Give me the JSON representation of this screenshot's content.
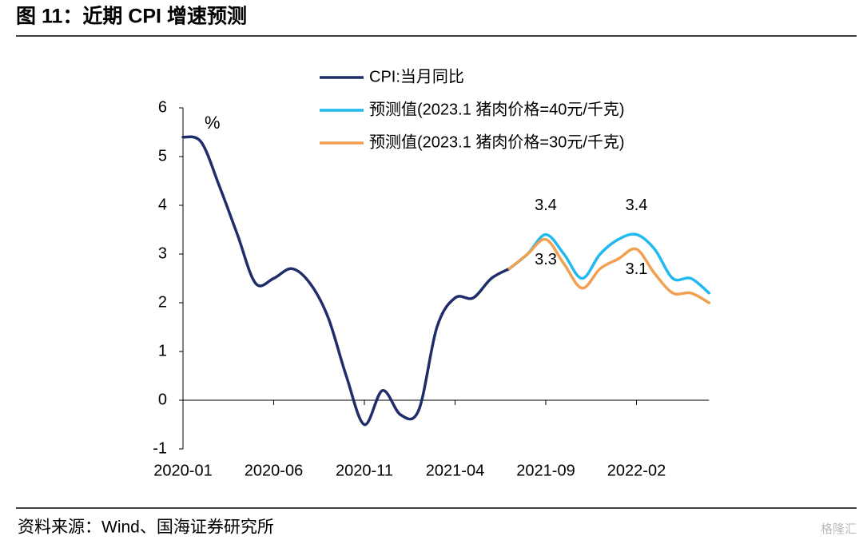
{
  "title": "图 11：近期 CPI 增速预测",
  "source": "资料来源：Wind、国海证券研究所",
  "watermark": "格隆汇",
  "chart_data": {
    "type": "line",
    "unit": "%",
    "categories": [
      "2020-01",
      null,
      null,
      null,
      null,
      "2020-06",
      null,
      null,
      null,
      null,
      "2020-11",
      null,
      null,
      null,
      null,
      "2021-04",
      null,
      null,
      null,
      null,
      "2021-09",
      null,
      null,
      null,
      null,
      "2022-02",
      null,
      null,
      null,
      null
    ],
    "series": [
      {
        "name": "CPI:当月同比",
        "color": "#1f2d6b",
        "values": [
          5.4,
          5.3,
          4.4,
          3.4,
          2.4,
          2.5,
          2.7,
          2.4,
          1.7,
          0.5,
          -0.5,
          0.2,
          -0.3,
          -0.2,
          1.5,
          2.1,
          2.1,
          2.5,
          2.7,
          null,
          null,
          null,
          null,
          null,
          null,
          null,
          null,
          null,
          null,
          null
        ]
      },
      {
        "name": "预测值(2023.1 猪肉价格=40元/千克)",
        "color": "#22b8f0",
        "values": [
          null,
          null,
          null,
          null,
          null,
          null,
          null,
          null,
          null,
          null,
          null,
          null,
          null,
          null,
          null,
          null,
          null,
          null,
          2.7,
          3.0,
          3.4,
          3.0,
          2.5,
          3.0,
          3.3,
          3.4,
          3.1,
          2.5,
          2.5,
          2.2
        ],
        "value_labels": [
          null,
          null,
          null,
          null,
          null,
          null,
          null,
          null,
          null,
          null,
          null,
          null,
          null,
          null,
          null,
          null,
          null,
          null,
          null,
          null,
          "3.4",
          null,
          null,
          null,
          null,
          "3.4",
          null,
          null,
          null,
          null
        ]
      },
      {
        "name": "预测值(2023.1 猪肉价格=30元/千克)",
        "color": "#f0a050",
        "values": [
          null,
          null,
          null,
          null,
          null,
          null,
          null,
          null,
          null,
          null,
          null,
          null,
          null,
          null,
          null,
          null,
          null,
          null,
          2.7,
          3.0,
          3.3,
          2.8,
          2.3,
          2.7,
          2.9,
          3.1,
          2.6,
          2.2,
          2.2,
          2.0
        ],
        "value_labels": [
          null,
          null,
          null,
          null,
          null,
          null,
          null,
          null,
          null,
          null,
          null,
          null,
          null,
          null,
          null,
          null,
          null,
          null,
          null,
          null,
          "3.3",
          null,
          null,
          null,
          null,
          "3.1",
          null,
          null,
          null,
          null
        ]
      }
    ],
    "ylim": [
      -1,
      6
    ],
    "yticks": [
      -1,
      0,
      1,
      2,
      3,
      4,
      5,
      6
    ],
    "legend": "top"
  }
}
